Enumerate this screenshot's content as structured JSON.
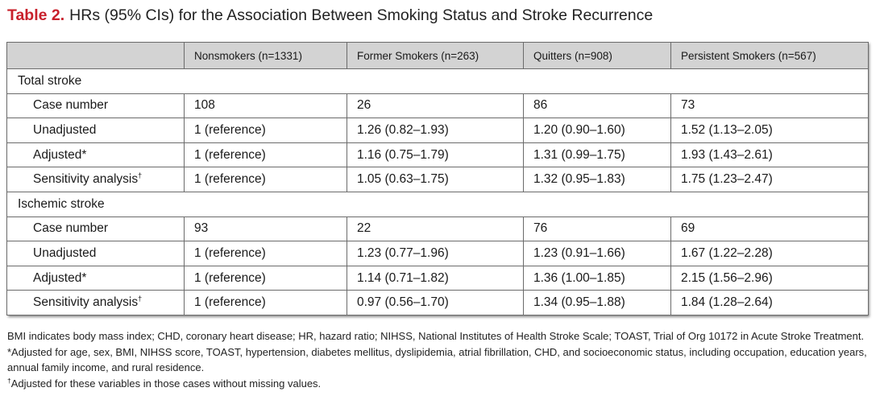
{
  "title": {
    "label": "Table 2.",
    "text": "HRs (95% CIs) for the Association Between Smoking Status and Stroke Recurrence"
  },
  "table": {
    "columns": [
      "",
      "Nonsmokers (n=1331)",
      "Former Smokers (n=263)",
      "Quitters (n=908)",
      "Persistent Smokers (n=567)"
    ],
    "groups": [
      {
        "name": "Total stroke",
        "rows": [
          {
            "label": "Case number",
            "sup": "",
            "values": [
              "108",
              "26",
              "86",
              "73"
            ]
          },
          {
            "label": "Unadjusted",
            "sup": "",
            "values": [
              "1 (reference)",
              "1.26 (0.82–1.93)",
              "1.20 (0.90–1.60)",
              "1.52 (1.13–2.05)"
            ]
          },
          {
            "label": "Adjusted*",
            "sup": "",
            "values": [
              "1 (reference)",
              "1.16 (0.75–1.79)",
              "1.31 (0.99–1.75)",
              "1.93 (1.43–2.61)"
            ]
          },
          {
            "label": "Sensitivity analysis",
            "sup": "†",
            "values": [
              "1 (reference)",
              "1.05 (0.63–1.75)",
              "1.32 (0.95–1.83)",
              "1.75 (1.23–2.47)"
            ]
          }
        ]
      },
      {
        "name": "Ischemic stroke",
        "rows": [
          {
            "label": "Case number",
            "sup": "",
            "values": [
              "93",
              "22",
              "76",
              "69"
            ]
          },
          {
            "label": "Unadjusted",
            "sup": "",
            "values": [
              "1 (reference)",
              "1.23 (0.77–1.96)",
              "1.23 (0.91–1.66)",
              "1.67 (1.22–2.28)"
            ]
          },
          {
            "label": "Adjusted*",
            "sup": "",
            "values": [
              "1 (reference)",
              "1.14 (0.71–1.82)",
              "1.36 (1.00–1.85)",
              "2.15 (1.56–2.96)"
            ]
          },
          {
            "label": "Sensitivity analysis",
            "sup": "†",
            "values": [
              "1 (reference)",
              "0.97 (0.56–1.70)",
              "1.34 (0.95–1.88)",
              "1.84 (1.28–2.64)"
            ]
          }
        ]
      }
    ]
  },
  "notes": {
    "abbreviations": "BMI indicates body mass index; CHD, coronary heart disease; HR, hazard ratio; NIHSS, National Institutes of Health Stroke Scale; TOAST, Trial of Org 10172 in Acute Stroke Treatment.",
    "adjusted": "*Adjusted for age, sex, BMI, NIHSS score, TOAST, hypertension, diabetes mellitus, dyslipidemia, atrial fibrillation, CHD, and socioeconomic status, including occupation, education years, annual family income, and rural residence.",
    "sensitivity_mark": "†",
    "sensitivity": "Adjusted for these variables in those cases without missing values."
  }
}
